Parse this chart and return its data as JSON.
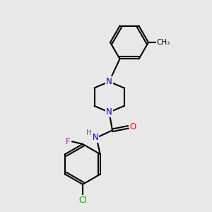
{
  "bg_color": "#e8e8e8",
  "bond_color": "#000000",
  "bond_width": 1.5,
  "atom_colors": {
    "N": "#0000cc",
    "O": "#ff0000",
    "F": "#cc00cc",
    "Cl": "#00aa00",
    "C": "#000000",
    "H": "#666666"
  },
  "font_size": 8.5
}
